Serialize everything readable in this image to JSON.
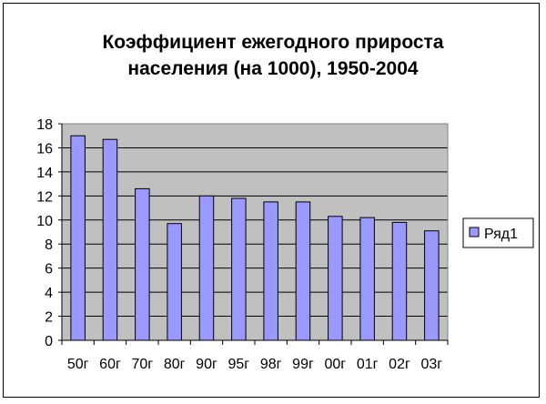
{
  "chart_data": {
    "type": "bar",
    "title": "Коэффициент ежегодного прироста населения (на 1000), 1950-2004",
    "title_lines": [
      "Коэффициент ежегодного прироста",
      "населения (на 1000), 1950-2004"
    ],
    "categories": [
      "50г",
      "60г",
      "70г",
      "80г",
      "90г",
      "95г",
      "98г",
      "99г",
      "00г",
      "01г",
      "02г",
      "03г"
    ],
    "series": [
      {
        "name": "Ряд1",
        "values": [
          17.0,
          16.7,
          12.6,
          9.7,
          12.0,
          11.8,
          11.5,
          11.5,
          10.3,
          10.2,
          9.8,
          9.1
        ]
      }
    ],
    "yticks": [
      0,
      2,
      4,
      6,
      8,
      10,
      12,
      14,
      16,
      18
    ],
    "ylim": [
      0,
      18
    ],
    "xlabel": "",
    "ylabel": "",
    "grid": true,
    "legend": "right",
    "colors": {
      "plot_area": "#c0c0c0",
      "bar_fill": "#9999ff",
      "bar_stroke": "#000000",
      "gridline": "#000000"
    }
  }
}
